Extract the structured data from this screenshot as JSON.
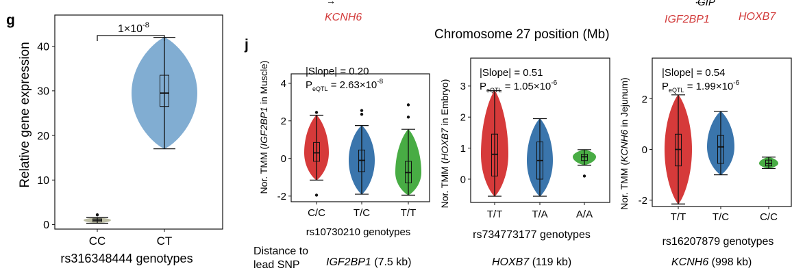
{
  "header": {
    "gene_labels": [
      {
        "name": "KCNH6",
        "color": "#d23a3a",
        "arrow": "→"
      },
      {
        "name": "GIP",
        "color": "#111111",
        "arrow": "←"
      },
      {
        "name": "IGF2BP1",
        "color": "#d23a3a",
        "arrow": ""
      },
      {
        "name": "HOXB7",
        "color": "#d23a3a",
        "arrow": ""
      }
    ],
    "chromosome_title": "Chromosome 27 position (Mb)"
  },
  "panel_labels": {
    "g": "g",
    "j": "j"
  },
  "distance": {
    "label_line1": "Distance to",
    "label_line2": "lead SNP",
    "entries": [
      {
        "gene": "IGF2BP1",
        "dist": " (7.5 kb)"
      },
      {
        "gene": "HOXB7",
        "dist": " (119 kb)"
      },
      {
        "gene": "KCNH6",
        "dist": " (998 kb)"
      }
    ]
  },
  "chart_data": [
    {
      "id": "g",
      "type": "violin",
      "ylabel": "Relative gene expression",
      "xlabel": "rs316348444 genotypes",
      "categories": [
        "CC",
        "CT"
      ],
      "ylim": [
        -1,
        47
      ],
      "yticks": [
        0,
        10,
        20,
        30,
        40
      ],
      "significance": "1×10",
      "significance_exp": "-8",
      "series": [
        {
          "name": "CC",
          "color": "#b9bba0",
          "min": 0.3,
          "q1": 0.7,
          "median": 1.0,
          "q3": 1.3,
          "max": 1.6,
          "outliers": [
            2.2
          ]
        },
        {
          "name": "CT",
          "color": "#7aa9d0",
          "min": 17,
          "q1": 26.5,
          "median": 29.5,
          "q3": 33.5,
          "max": 42,
          "outliers": []
        }
      ]
    },
    {
      "id": "j1",
      "type": "violin",
      "ylabel_prefix": "Nor. TMM (",
      "ylabel_gene": "IGF2BP1",
      "ylabel_suffix": " in Muscle)",
      "xlabel": "rs10730210 genotypes",
      "slope": "|Slope| = 0.20",
      "p_prefix": "P",
      "p_sub": "eQTL",
      "p_value": " = 2.63×10",
      "p_exp": "-8",
      "categories": [
        "C/C",
        "T/C",
        "T/T"
      ],
      "ylim": [
        -2.3,
        4.5
      ],
      "yticks": [
        -2,
        0,
        2,
        4
      ],
      "series": [
        {
          "name": "C/C",
          "color": "#d42f2f",
          "min": -1.15,
          "q1": -0.15,
          "median": 0.3,
          "q3": 0.85,
          "max": 2.3,
          "outliers": [
            -1.95,
            2.45
          ]
        },
        {
          "name": "T/C",
          "color": "#2f6ea8",
          "min": -1.9,
          "q1": -0.7,
          "median": -0.1,
          "q3": 0.45,
          "max": 1.75,
          "outliers": [
            2.35,
            2.55
          ]
        },
        {
          "name": "T/T",
          "color": "#3ea83a",
          "min": -1.95,
          "q1": -1.3,
          "median": -0.75,
          "q3": -0.15,
          "max": 1.55,
          "outliers": [
            2.2,
            2.85
          ]
        }
      ]
    },
    {
      "id": "j2",
      "type": "violin",
      "ylabel_prefix": "Nor. TMM (",
      "ylabel_gene": "HOXB7",
      "ylabel_suffix": " in Embryo)",
      "xlabel": "rs734773177 genotypes",
      "slope": "|Slope| = 0.51",
      "p_prefix": "P",
      "p_sub": "eQTL",
      "p_value": " = 1.05×10",
      "p_exp": "-6",
      "categories": [
        "T/T",
        "T/A",
        "A/A"
      ],
      "ylim": [
        -0.75,
        3.9
      ],
      "yticks": [
        0,
        1,
        2,
        3
      ],
      "series": [
        {
          "name": "T/T",
          "color": "#d42f2f",
          "min": -0.55,
          "q1": 0.1,
          "median": 0.8,
          "q3": 1.45,
          "max": 2.85,
          "outliers": []
        },
        {
          "name": "T/A",
          "color": "#2f6ea8",
          "min": -0.55,
          "q1": 0.0,
          "median": 0.6,
          "q3": 1.2,
          "max": 1.95,
          "outliers": []
        },
        {
          "name": "A/A",
          "color": "#3ea83a",
          "min": 0.45,
          "q1": 0.6,
          "median": 0.72,
          "q3": 0.8,
          "max": 0.95,
          "outliers": [
            0.1
          ]
        }
      ]
    },
    {
      "id": "j3",
      "type": "violin",
      "ylabel_prefix": "Nor. TMM (",
      "ylabel_gene": "KCNH6",
      "ylabel_suffix": " in Jejunum)",
      "xlabel": "rs16207879 genotypes",
      "slope": "|Slope| = 0.54",
      "p_prefix": "P",
      "p_sub": "eQTL",
      "p_value": " = 1.99×10",
      "p_exp": "-6",
      "categories": [
        "T/T",
        "T/C",
        "C/C"
      ],
      "ylim": [
        -2.25,
        3.6
      ],
      "yticks": [
        -2,
        0,
        2
      ],
      "series": [
        {
          "name": "T/T",
          "color": "#d42f2f",
          "min": -2.15,
          "q1": -0.65,
          "median": 0.0,
          "q3": 0.6,
          "max": 2.15,
          "outliers": []
        },
        {
          "name": "T/C",
          "color": "#2f6ea8",
          "min": -1.0,
          "q1": -0.55,
          "median": 0.1,
          "q3": 0.55,
          "max": 1.5,
          "outliers": []
        },
        {
          "name": "C/C",
          "color": "#3ea83a",
          "min": -0.75,
          "q1": -0.65,
          "median": -0.55,
          "q3": -0.42,
          "max": -0.3,
          "outliers": []
        }
      ]
    }
  ]
}
